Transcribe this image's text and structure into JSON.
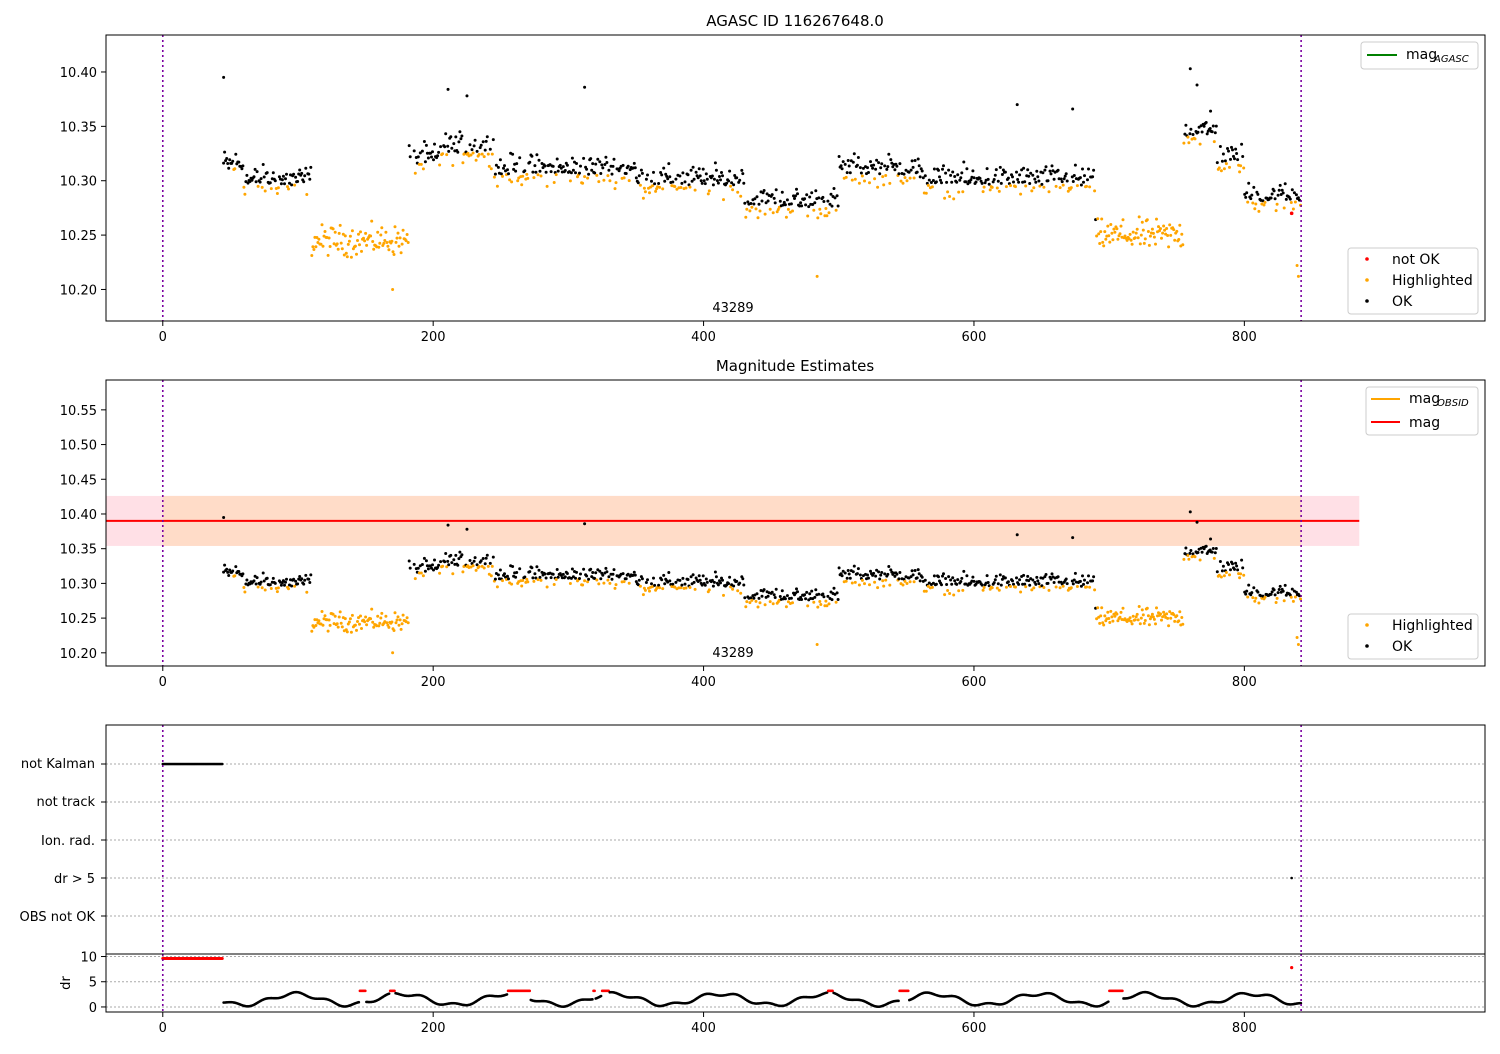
{
  "figure": {
    "obsid_label": "43289",
    "x_ticks": [
      "0",
      "200",
      "400",
      "600",
      "800"
    ],
    "obs_start": 0,
    "obs_end": 842,
    "colors": {
      "ok": "#000000",
      "not_ok": "#ff0000",
      "highlighted": "#ffa500",
      "mag_agasc": "#008000",
      "mag": "#ff0000",
      "mag_obsid": "#ffa500",
      "band_outer": "#ffe0e6",
      "band_inner": "#ffdcc8",
      "obs_line": "#7b00a0"
    }
  },
  "chart_data": [
    {
      "type": "scatter",
      "title": "AGASC ID 116267648.0",
      "xlim": [
        -42,
        978
      ],
      "ylim": [
        10.171,
        10.434
      ],
      "y_ticks": [
        "10.20",
        "10.25",
        "10.30",
        "10.35",
        "10.40"
      ],
      "legend_lines": [
        {
          "label_main": "mag",
          "label_sub": "AGASC"
        }
      ],
      "legend_points": [
        {
          "label": "not OK"
        },
        {
          "label": "Highlighted"
        },
        {
          "label": "OK"
        }
      ],
      "not_ok_points": [
        [
          835,
          10.27
        ]
      ],
      "outliers": [
        [
          45,
          10.395
        ],
        [
          760,
          10.403
        ],
        [
          765,
          10.388
        ],
        [
          775,
          10.364
        ],
        [
          312,
          10.386
        ],
        [
          211,
          10.384
        ],
        [
          225,
          10.378
        ],
        [
          632,
          10.37
        ],
        [
          673,
          10.366
        ],
        [
          484,
          10.212
        ],
        [
          170,
          10.2
        ],
        [
          839,
          10.222
        ],
        [
          840,
          10.212
        ]
      ]
    },
    {
      "type": "scatter",
      "title": "Magnitude Estimates",
      "xlim": [
        -42,
        978
      ],
      "ylim": [
        10.181,
        10.593
      ],
      "y_ticks": [
        "10.20",
        "10.25",
        "10.30",
        "10.35",
        "10.40",
        "10.45",
        "10.50",
        "10.55"
      ],
      "mag": 10.39,
      "mag_band": [
        10.354,
        10.426
      ],
      "legend_lines": [
        {
          "label_main": "mag",
          "label_sub": "OBSID"
        },
        {
          "label_main": "mag",
          "label_sub": ""
        }
      ],
      "legend_points": [
        {
          "label": "Highlighted"
        },
        {
          "label": "OK"
        }
      ]
    },
    {
      "type": "scatter",
      "title": "",
      "flags": [
        "not Kalman",
        "not track",
        "Ion. rad.",
        "dr > 5",
        "OBS not OK"
      ],
      "flag_points": {
        "not Kalman": [
          0,
          44
        ],
        "dr > 5": [
          835
        ]
      },
      "dr_ylim": [
        -1,
        10.5
      ],
      "dr_ticks": [
        "0",
        "5",
        "10"
      ],
      "dr_ylabel": "dr",
      "dr_red_ranges": [
        [
          0,
          44
        ],
        [
          145,
          150
        ],
        [
          168,
          172
        ],
        [
          255,
          272
        ],
        [
          318,
          320
        ],
        [
          325,
          330
        ],
        [
          492,
          496
        ],
        [
          545,
          552
        ],
        [
          700,
          710
        ],
        [
          835,
          835
        ]
      ]
    }
  ]
}
